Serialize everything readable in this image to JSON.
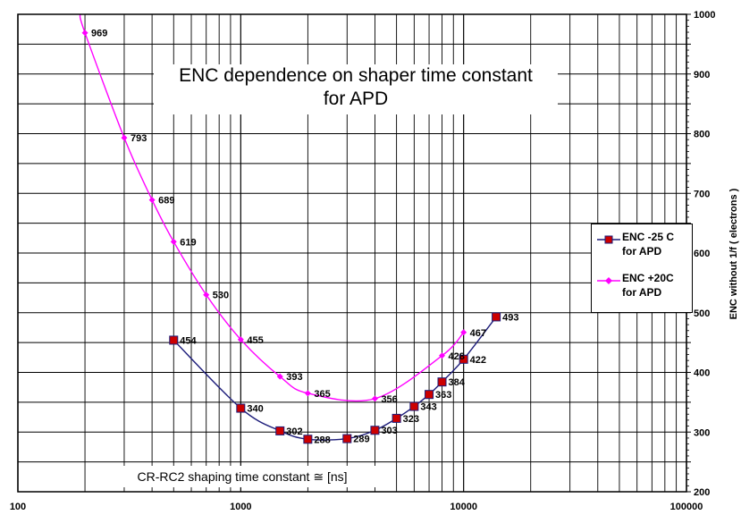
{
  "chart_data": {
    "type": "line",
    "title": "ENC  dependence on  shaper time constant\nfor APD",
    "xlabel": "CR-RC2 shaping time constant ≅ [ns]",
    "ylabel": "ENC without 1/f  (  electrons )",
    "x_scale": "log",
    "xlim": [
      100,
      100000
    ],
    "ylim": [
      200,
      1000
    ],
    "x_ticks": [
      "100",
      "1000",
      "10000",
      "100000"
    ],
    "y_ticks": [
      "200",
      "300",
      "400",
      "500",
      "600",
      "700",
      "800",
      "900",
      "1000"
    ],
    "grid": true,
    "legend_position": "right",
    "series": [
      {
        "name": "ENC  -25 C for APD",
        "color": "#1c1c7a",
        "marker": "square",
        "marker_color": "#cc0000",
        "x": [
          500,
          1000,
          1500,
          2000,
          3000,
          4000,
          5000,
          6000,
          7000,
          8000,
          10000,
          14000
        ],
        "y": [
          454,
          340,
          302,
          288,
          289,
          303,
          323,
          343,
          363,
          384,
          422,
          493
        ],
        "labels": [
          "454",
          "340",
          "302",
          "288",
          "289",
          "303",
          "323",
          "343",
          "363",
          "384",
          "422",
          "493"
        ]
      },
      {
        "name": "ENC +20C for APD",
        "color": "#ff00ff",
        "marker": "diamond",
        "marker_color": "#ff00ff",
        "x": [
          200,
          300,
          400,
          500,
          700,
          1000,
          1500,
          2000,
          4000,
          8000,
          10000
        ],
        "y": [
          969,
          793,
          689,
          619,
          530,
          455,
          393,
          365,
          356,
          428,
          467
        ],
        "labels": [
          "969",
          "793",
          "689",
          "619",
          "530",
          "455",
          "393",
          "365",
          "356",
          "428",
          "467"
        ]
      }
    ]
  }
}
